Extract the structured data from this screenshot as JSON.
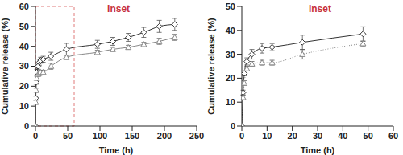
{
  "chart_data": [
    {
      "type": "line",
      "annotation": "Inset",
      "x_label": "Time (h)",
      "y_label": "Cumulative release (%)",
      "x": [
        0,
        0.5,
        1,
        2,
        4,
        6,
        8,
        12,
        24,
        48,
        96,
        120,
        144,
        168,
        192,
        216
      ],
      "series": [
        {
          "color": "#333333",
          "marker": "diamond",
          "line_style": "solid",
          "values": [
            0,
            14,
            22,
            27,
            30,
            32,
            33,
            33.5,
            35,
            38.5,
            41,
            42.5,
            44.5,
            47,
            50,
            51
          ],
          "error": [
            0,
            1,
            1,
            1.5,
            1.5,
            1.5,
            1.5,
            1.5,
            2,
            3,
            2,
            2,
            2,
            2.5,
            3,
            3
          ]
        },
        {
          "color": "#888888",
          "marker": "triangle",
          "line_style": "solid",
          "values": [
            0,
            12,
            18,
            24,
            26,
            26.5,
            27,
            27,
            30,
            34.5,
            37,
            38.5,
            39.5,
            41,
            42.5,
            44.5
          ],
          "error": [
            0,
            1,
            1,
            1,
            1,
            1,
            1,
            1,
            1.5,
            1,
            1,
            1,
            1,
            1,
            1.5,
            1.5
          ]
        }
      ],
      "xlim": [
        0,
        250
      ],
      "xticks": [
        0,
        50,
        100,
        150,
        200,
        250
      ],
      "ylim": [
        0,
        60
      ],
      "yticks": [
        0,
        10,
        20,
        30,
        40,
        50,
        60
      ],
      "grid": false
    },
    {
      "type": "line",
      "annotation": "Inset",
      "x_label": "Time (h)",
      "y_label": "Cumulative release (%)",
      "x": [
        0,
        0.5,
        1,
        2,
        4,
        8,
        12,
        24,
        48
      ],
      "series": [
        {
          "color": "#333333",
          "marker": "diamond",
          "line_style": "solid",
          "values": [
            0,
            14,
            22,
            27,
            30,
            32.5,
            33,
            35,
            38.5
          ],
          "error": [
            0,
            1,
            1,
            1.5,
            2,
            2,
            1.5,
            3,
            3
          ]
        },
        {
          "color": "#888888",
          "marker": "triangle",
          "line_style": "dotted",
          "values": [
            0,
            12,
            18,
            24,
            26,
            26.5,
            26.5,
            30,
            34.5
          ],
          "error": [
            0,
            1,
            1,
            1,
            1,
            1,
            1,
            2,
            1
          ]
        }
      ],
      "xlim": [
        0,
        60
      ],
      "xticks": [
        0,
        10,
        20,
        30,
        40,
        50,
        60
      ],
      "ylim": [
        0,
        50
      ],
      "yticks": [
        0,
        10,
        20,
        30,
        40,
        50
      ],
      "grid": false
    }
  ]
}
